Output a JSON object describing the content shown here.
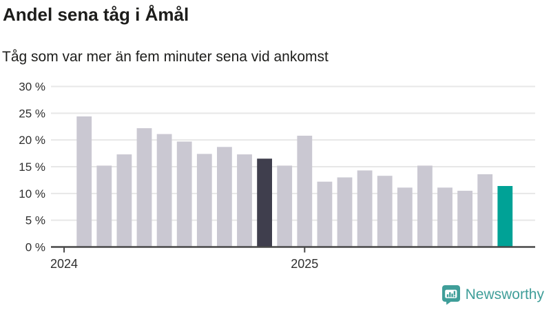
{
  "header": {
    "title": "Andel sena tåg i Åmål",
    "subtitle": "Tåg som var mer än fem minuter sena vid ankomst"
  },
  "chart_data": {
    "type": "bar",
    "title": "Andel sena tåg i Åmål",
    "subtitle": "Tåg som var mer än fem minuter sena vid ankomst",
    "unit": "%",
    "values": [
      24.4,
      15.2,
      17.3,
      22.2,
      21.1,
      19.7,
      17.4,
      18.7,
      17.3,
      16.5,
      15.2,
      20.8,
      12.2,
      13.0,
      14.3,
      13.3,
      11.1,
      15.2,
      11.1,
      10.5,
      13.6,
      11.4
    ],
    "bars_start_at_month_index": 1,
    "months_in_domain": 24,
    "x_tick_labels": [
      "2024",
      "2025"
    ],
    "x_tick_month_index": [
      0,
      12
    ],
    "y_ticks": [
      0,
      5,
      10,
      15,
      20,
      25,
      30
    ],
    "y_tick_labels": [
      "0 %",
      "5 %",
      "10 %",
      "15 %",
      "20 %",
      "25 %",
      "30 %"
    ],
    "ylim": [
      0,
      30
    ],
    "grid": "horizontal",
    "legend": "none",
    "highlight_dark_index": 9,
    "highlight_accent_index": 21,
    "colors": {
      "bar_default": "#cac8d2",
      "bar_dark": "#3f3e4d",
      "bar_accent": "#00a296",
      "gridline": "#e7e7e7",
      "axis": "#474747",
      "tick_label": "#2e2e2e"
    }
  },
  "footer": {
    "brand": "Newsworthy",
    "brand_color": "#3f9e99",
    "logo_icon": "newsworthy-speech-bubble-chart-icon"
  }
}
